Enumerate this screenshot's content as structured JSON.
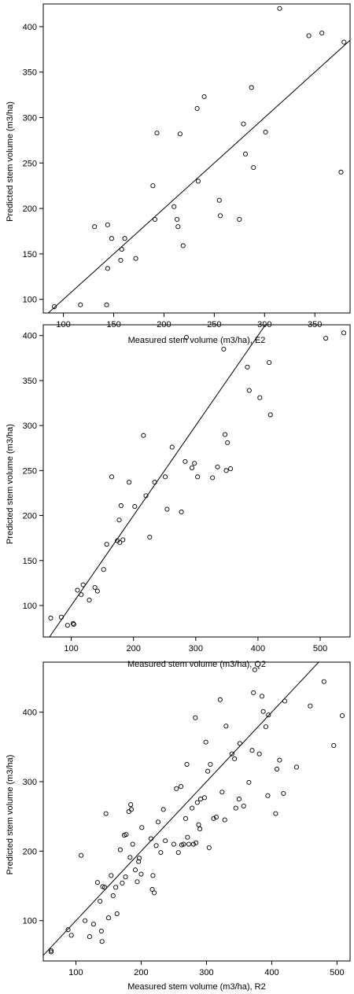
{
  "chart_data": [
    {
      "type": "scatter",
      "xlabel": "Measured stem volume (m3/ha), E2",
      "ylabel": "Predicted stem volume (m3/ha)",
      "xlim": [
        80,
        385
      ],
      "ylim": [
        85,
        425
      ],
      "xticks": [
        100,
        150,
        200,
        250,
        300,
        350
      ],
      "yticks": [
        100,
        150,
        200,
        250,
        300,
        350,
        400
      ],
      "reference_line": "1:1",
      "points": [
        [
          91,
          92
        ],
        [
          117,
          94
        ],
        [
          131,
          180
        ],
        [
          143,
          94
        ],
        [
          144,
          134
        ],
        [
          144,
          182
        ],
        [
          148,
          167
        ],
        [
          157,
          143
        ],
        [
          158,
          155
        ],
        [
          161,
          167
        ],
        [
          172,
          145
        ],
        [
          189,
          225
        ],
        [
          191,
          188
        ],
        [
          193,
          283
        ],
        [
          210,
          202
        ],
        [
          213,
          188
        ],
        [
          214,
          180
        ],
        [
          216,
          282
        ],
        [
          219,
          159
        ],
        [
          233,
          310
        ],
        [
          234,
          230
        ],
        [
          240,
          323
        ],
        [
          255,
          209
        ],
        [
          256,
          192
        ],
        [
          275,
          188
        ],
        [
          279,
          293
        ],
        [
          281,
          260
        ],
        [
          287,
          333
        ],
        [
          289,
          245
        ],
        [
          301,
          284
        ],
        [
          315,
          420
        ],
        [
          344,
          390
        ],
        [
          357,
          393
        ],
        [
          376,
          240
        ],
        [
          379,
          383
        ]
      ]
    },
    {
      "type": "scatter",
      "xlabel": "Measured stem volume (m3/ha), Q2",
      "ylabel": "Predicted stem volume (m3/ha)",
      "xlim": [
        55,
        548
      ],
      "ylim": [
        65,
        412
      ],
      "xticks": [
        100,
        200,
        300,
        400,
        500
      ],
      "yticks": [
        100,
        150,
        200,
        250,
        300,
        350,
        400
      ],
      "reference_line": "1:1",
      "points": [
        [
          67,
          86
        ],
        [
          84,
          87
        ],
        [
          94,
          78
        ],
        [
          103,
          80
        ],
        [
          104,
          79
        ],
        [
          110,
          117
        ],
        [
          116,
          112
        ],
        [
          119,
          123
        ],
        [
          129,
          106
        ],
        [
          138,
          120
        ],
        [
          142,
          116
        ],
        [
          152,
          140
        ],
        [
          157,
          168
        ],
        [
          165,
          243
        ],
        [
          174,
          172
        ],
        [
          177,
          195
        ],
        [
          178,
          170
        ],
        [
          180,
          211
        ],
        [
          183,
          173
        ],
        [
          193,
          237
        ],
        [
          202,
          210
        ],
        [
          216,
          289
        ],
        [
          220,
          222
        ],
        [
          226,
          176
        ],
        [
          234,
          237
        ],
        [
          251,
          243
        ],
        [
          254,
          207
        ],
        [
          262,
          276
        ],
        [
          277,
          204
        ],
        [
          283,
          260
        ],
        [
          285,
          398
        ],
        [
          294,
          253
        ],
        [
          298,
          258
        ],
        [
          303,
          243
        ],
        [
          327,
          242
        ],
        [
          335,
          254
        ],
        [
          345,
          385
        ],
        [
          347,
          290
        ],
        [
          349,
          250
        ],
        [
          351,
          281
        ],
        [
          356,
          252
        ],
        [
          383,
          365
        ],
        [
          386,
          339
        ],
        [
          403,
          331
        ],
        [
          418,
          370
        ],
        [
          420,
          312
        ],
        [
          509,
          397
        ],
        [
          538,
          403
        ]
      ]
    },
    {
      "type": "scatter",
      "xlabel": "Measured stem volume (m3/ha), R2",
      "ylabel": "Predicted stem volume (m3/ha)",
      "xlim": [
        50,
        520
      ],
      "ylim": [
        42,
        472
      ],
      "xticks": [
        100,
        200,
        300,
        400,
        500
      ],
      "yticks": [
        100,
        200,
        300,
        400
      ],
      "reference_line": "1:1",
      "points": [
        [
          62,
          55
        ],
        [
          62,
          57
        ],
        [
          88,
          87
        ],
        [
          93,
          79
        ],
        [
          108,
          194
        ],
        [
          114,
          100
        ],
        [
          121,
          77
        ],
        [
          127,
          95
        ],
        [
          133,
          155
        ],
        [
          137,
          128
        ],
        [
          139,
          85
        ],
        [
          140,
          70
        ],
        [
          141,
          149
        ],
        [
          144,
          148
        ],
        [
          146,
          254
        ],
        [
          150,
          104
        ],
        [
          154,
          165
        ],
        [
          157,
          136
        ],
        [
          161,
          148
        ],
        [
          163,
          110
        ],
        [
          168,
          202
        ],
        [
          171,
          154
        ],
        [
          174,
          223
        ],
        [
          176,
          163
        ],
        [
          177,
          224
        ],
        [
          181,
          257
        ],
        [
          183,
          191
        ],
        [
          184,
          267
        ],
        [
          185,
          260
        ],
        [
          187,
          210
        ],
        [
          191,
          173
        ],
        [
          194,
          156
        ],
        [
          196,
          185
        ],
        [
          197,
          190
        ],
        [
          200,
          167
        ],
        [
          201,
          234
        ],
        [
          215,
          218
        ],
        [
          217,
          145
        ],
        [
          218,
          165
        ],
        [
          220,
          140
        ],
        [
          223,
          208
        ],
        [
          226,
          242
        ],
        [
          230,
          198
        ],
        [
          234,
          260
        ],
        [
          237,
          215
        ],
        [
          250,
          210
        ],
        [
          254,
          290
        ],
        [
          257,
          198
        ],
        [
          261,
          293
        ],
        [
          262,
          209
        ],
        [
          265,
          210
        ],
        [
          268,
          247
        ],
        [
          270,
          325
        ],
        [
          271,
          220
        ],
        [
          273,
          210
        ],
        [
          278,
          262
        ],
        [
          280,
          210
        ],
        [
          283,
          392
        ],
        [
          284,
          212
        ],
        [
          286,
          270
        ],
        [
          288,
          238
        ],
        [
          290,
          232
        ],
        [
          291,
          275
        ],
        [
          297,
          277
        ],
        [
          299,
          357
        ],
        [
          302,
          315
        ],
        [
          304,
          205
        ],
        [
          306,
          325
        ],
        [
          311,
          247
        ],
        [
          315,
          249
        ],
        [
          321,
          418
        ],
        [
          324,
          285
        ],
        [
          328,
          245
        ],
        [
          330,
          380
        ],
        [
          339,
          340
        ],
        [
          343,
          333
        ],
        [
          345,
          262
        ],
        [
          350,
          275
        ],
        [
          351,
          355
        ],
        [
          357,
          265
        ],
        [
          365,
          299
        ],
        [
          370,
          345
        ],
        [
          372,
          428
        ],
        [
          374,
          461
        ],
        [
          381,
          340
        ],
        [
          385,
          423
        ],
        [
          387,
          401
        ],
        [
          391,
          379
        ],
        [
          394,
          280
        ],
        [
          395,
          396
        ],
        [
          406,
          254
        ],
        [
          408,
          318
        ],
        [
          412,
          331
        ],
        [
          418,
          283
        ],
        [
          420,
          416
        ],
        [
          438,
          321
        ],
        [
          459,
          409
        ],
        [
          480,
          444
        ],
        [
          495,
          352
        ],
        [
          508,
          395
        ]
      ]
    }
  ]
}
